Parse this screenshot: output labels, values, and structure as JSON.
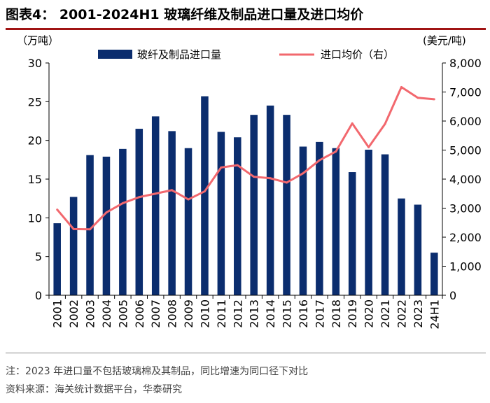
{
  "header": {
    "title": "图表4：  2001-2024H1 玻璃纤维及制品进口量及进口均价"
  },
  "footer": {
    "note": "注：2023 年进口量不包括玻璃棉及其制品，同比增速为同口径下对比",
    "source": "资料来源：海关统计数据平台，华泰研究"
  },
  "colors": {
    "bar": "#0b2d6e",
    "line": "#f2686e",
    "rule": "#a01414"
  },
  "chart_data": {
    "type": "bar+line",
    "categories": [
      "2001",
      "2002",
      "2003",
      "2004",
      "2005",
      "2006",
      "2007",
      "2008",
      "2009",
      "2010",
      "2011",
      "2012",
      "2013",
      "2014",
      "2015",
      "2016",
      "2017",
      "2018",
      "2019",
      "2020",
      "2021",
      "2022",
      "2023",
      "24H1"
    ],
    "series": [
      {
        "name": "玻纤及制品进口量",
        "type": "bar",
        "axis": "left",
        "values": [
          9.3,
          12.7,
          18.1,
          17.9,
          18.9,
          21.5,
          23.1,
          21.2,
          19.0,
          25.7,
          21.1,
          20.4,
          23.3,
          24.5,
          23.3,
          19.2,
          19.8,
          19.0,
          15.9,
          18.8,
          18.2,
          12.5,
          11.7,
          5.5
        ]
      },
      {
        "name": "进口均价（右）",
        "type": "line",
        "axis": "right",
        "values": [
          2950,
          2280,
          2270,
          2850,
          3170,
          3380,
          3500,
          3620,
          3300,
          3580,
          4400,
          4480,
          4080,
          4030,
          3880,
          4200,
          4650,
          4950,
          5920,
          5100,
          5900,
          7170,
          6800,
          6750
        ]
      }
    ],
    "y_left": {
      "label": "（万吨）",
      "min": 0,
      "max": 30,
      "ticks": [
        "0",
        "5",
        "10",
        "15",
        "20",
        "25",
        "30"
      ]
    },
    "y_right": {
      "label": "(美元/吨)",
      "min": 0,
      "max": 8000,
      "ticks": [
        "0",
        "1,000",
        "2,000",
        "3,000",
        "4,000",
        "5,000",
        "6,000",
        "7,000",
        "8,000"
      ]
    },
    "legend_position": "top",
    "grid": false
  }
}
